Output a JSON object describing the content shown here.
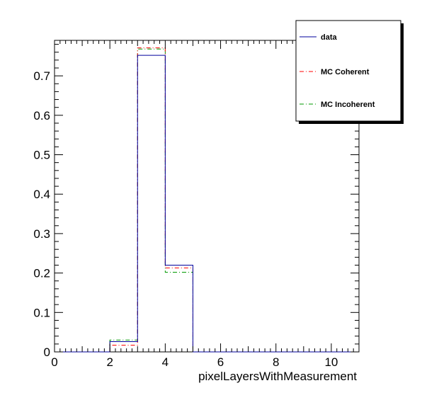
{
  "chart_data": {
    "type": "histogram",
    "xlabel": "pixelLayersWithMeasurement",
    "ylabel": "",
    "xlim": [
      0,
      11
    ],
    "ylim": [
      0,
      0.79
    ],
    "x_ticks": [
      0,
      2,
      4,
      6,
      8,
      10
    ],
    "y_ticks": [
      0,
      0.1,
      0.2,
      0.3,
      0.4,
      0.5,
      0.6,
      0.7
    ],
    "bin_edges": [
      0,
      1,
      2,
      3,
      4,
      5,
      6,
      7,
      8,
      9,
      10,
      11
    ],
    "grid": false,
    "legend_position": "top-right",
    "series": [
      {
        "name": "data",
        "color": "#00009c",
        "style": "solid",
        "values": [
          0,
          0,
          0.026,
          0.752,
          0.22,
          0,
          0,
          0,
          0,
          0,
          0
        ]
      },
      {
        "name": "MC Coherent",
        "color": "#ff0000",
        "style": "dashdot",
        "values": [
          0,
          0,
          0.017,
          0.771,
          0.213,
          0,
          0,
          0,
          0,
          0,
          0
        ]
      },
      {
        "name": "MC Incoherent",
        "color": "#009900",
        "style": "dashdot",
        "values": [
          0,
          0,
          0.03,
          0.768,
          0.202,
          0,
          0,
          0,
          0,
          0,
          0
        ]
      }
    ]
  }
}
